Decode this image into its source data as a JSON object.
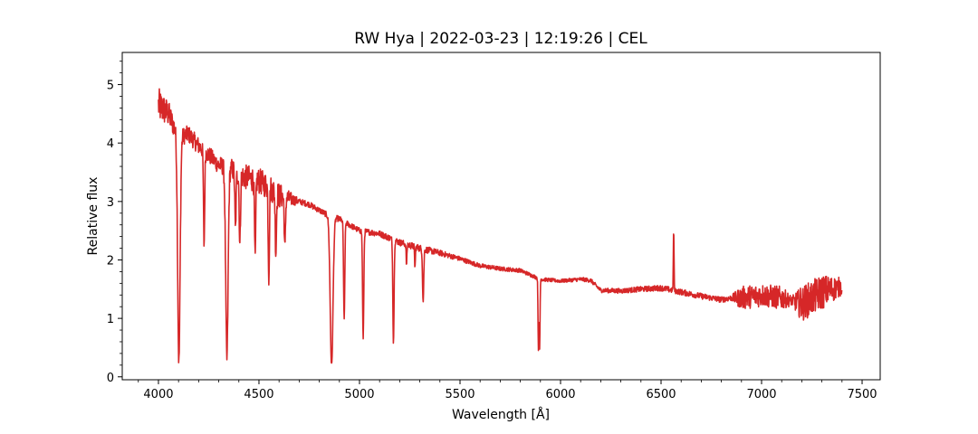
{
  "chart_data": {
    "type": "line",
    "title": "RW Hya | 2022-03-23 | 12:19:26 | CEL",
    "xlabel": "Wavelength [Å]",
    "ylabel": "Relative flux",
    "xlim": [
      3820,
      7590
    ],
    "ylim": [
      -0.05,
      5.55
    ],
    "xticks": [
      4000,
      4500,
      5000,
      5500,
      6000,
      6500,
      7000,
      7500
    ],
    "yticks": [
      0,
      1,
      2,
      3,
      4,
      5
    ],
    "grid": false,
    "line_color": "#d62728",
    "series": [
      {
        "continuum": [
          [
            4000,
            4.65
          ],
          [
            4050,
            4.5
          ],
          [
            4100,
            4.1
          ],
          [
            4150,
            4.15
          ],
          [
            4200,
            3.95
          ],
          [
            4250,
            3.8
          ],
          [
            4300,
            3.62
          ],
          [
            4350,
            3.6
          ],
          [
            4400,
            3.45
          ],
          [
            4450,
            3.4
          ],
          [
            4500,
            3.35
          ],
          [
            4550,
            3.25
          ],
          [
            4600,
            3.1
          ],
          [
            4650,
            3.05
          ],
          [
            4700,
            3.0
          ],
          [
            4750,
            2.95
          ],
          [
            4800,
            2.85
          ],
          [
            4850,
            2.75
          ],
          [
            4900,
            2.7
          ],
          [
            4950,
            2.6
          ],
          [
            5000,
            2.5
          ],
          [
            5100,
            2.45
          ],
          [
            5200,
            2.3
          ],
          [
            5300,
            2.2
          ],
          [
            5400,
            2.12
          ],
          [
            5500,
            2.02
          ],
          [
            5600,
            1.9
          ],
          [
            5700,
            1.85
          ],
          [
            5800,
            1.82
          ],
          [
            5900,
            1.67
          ],
          [
            6000,
            1.64
          ],
          [
            6100,
            1.67
          ],
          [
            6150,
            1.65
          ],
          [
            6200,
            1.48
          ],
          [
            6300,
            1.47
          ],
          [
            6400,
            1.5
          ],
          [
            6500,
            1.52
          ],
          [
            6600,
            1.45
          ],
          [
            6700,
            1.38
          ],
          [
            6800,
            1.32
          ],
          [
            6850,
            1.35
          ],
          [
            6900,
            1.35
          ],
          [
            7000,
            1.4
          ],
          [
            7100,
            1.35
          ],
          [
            7150,
            1.3
          ],
          [
            7200,
            1.25
          ],
          [
            7300,
            1.45
          ],
          [
            7400,
            1.55
          ]
        ],
        "noise": [
          [
            4000,
            0.3
          ],
          [
            4100,
            0.15
          ],
          [
            4200,
            0.15
          ],
          [
            4300,
            0.15
          ],
          [
            4450,
            0.22
          ],
          [
            4600,
            0.22
          ],
          [
            4700,
            0.05
          ],
          [
            5000,
            0.05
          ],
          [
            5300,
            0.06
          ],
          [
            5500,
            0.04
          ],
          [
            6000,
            0.03
          ],
          [
            6500,
            0.05
          ],
          [
            6850,
            0.05
          ],
          [
            6900,
            0.2
          ],
          [
            7100,
            0.2
          ],
          [
            7150,
            0.08
          ],
          [
            7200,
            0.3
          ],
          [
            7300,
            0.3
          ],
          [
            7400,
            0.15
          ]
        ],
        "absorption_lines": [
          [
            4101.7,
            3.85,
            6
          ],
          [
            4227,
            1.6,
            3
          ],
          [
            4340.5,
            3.3,
            6
          ],
          [
            4383,
            1.0,
            3
          ],
          [
            4405,
            1.2,
            3
          ],
          [
            4481,
            1.4,
            3
          ],
          [
            4549,
            1.5,
            3
          ],
          [
            4584,
            1.0,
            3
          ],
          [
            4629,
            0.9,
            3
          ],
          [
            4861.3,
            2.55,
            7
          ],
          [
            4923.9,
            1.7,
            3
          ],
          [
            5018.4,
            1.85,
            3
          ],
          [
            5169,
            1.75,
            3
          ],
          [
            5234,
            0.35,
            2
          ],
          [
            5276,
            0.35,
            2
          ],
          [
            5316.6,
            0.9,
            3
          ],
          [
            5890,
            1.2,
            2
          ],
          [
            5896,
            1.2,
            2
          ],
          [
            6562.8,
            1.15,
            1.5
          ]
        ],
        "emission_lines": [
          [
            6562.8,
            2.2,
            1.6
          ]
        ]
      }
    ]
  }
}
